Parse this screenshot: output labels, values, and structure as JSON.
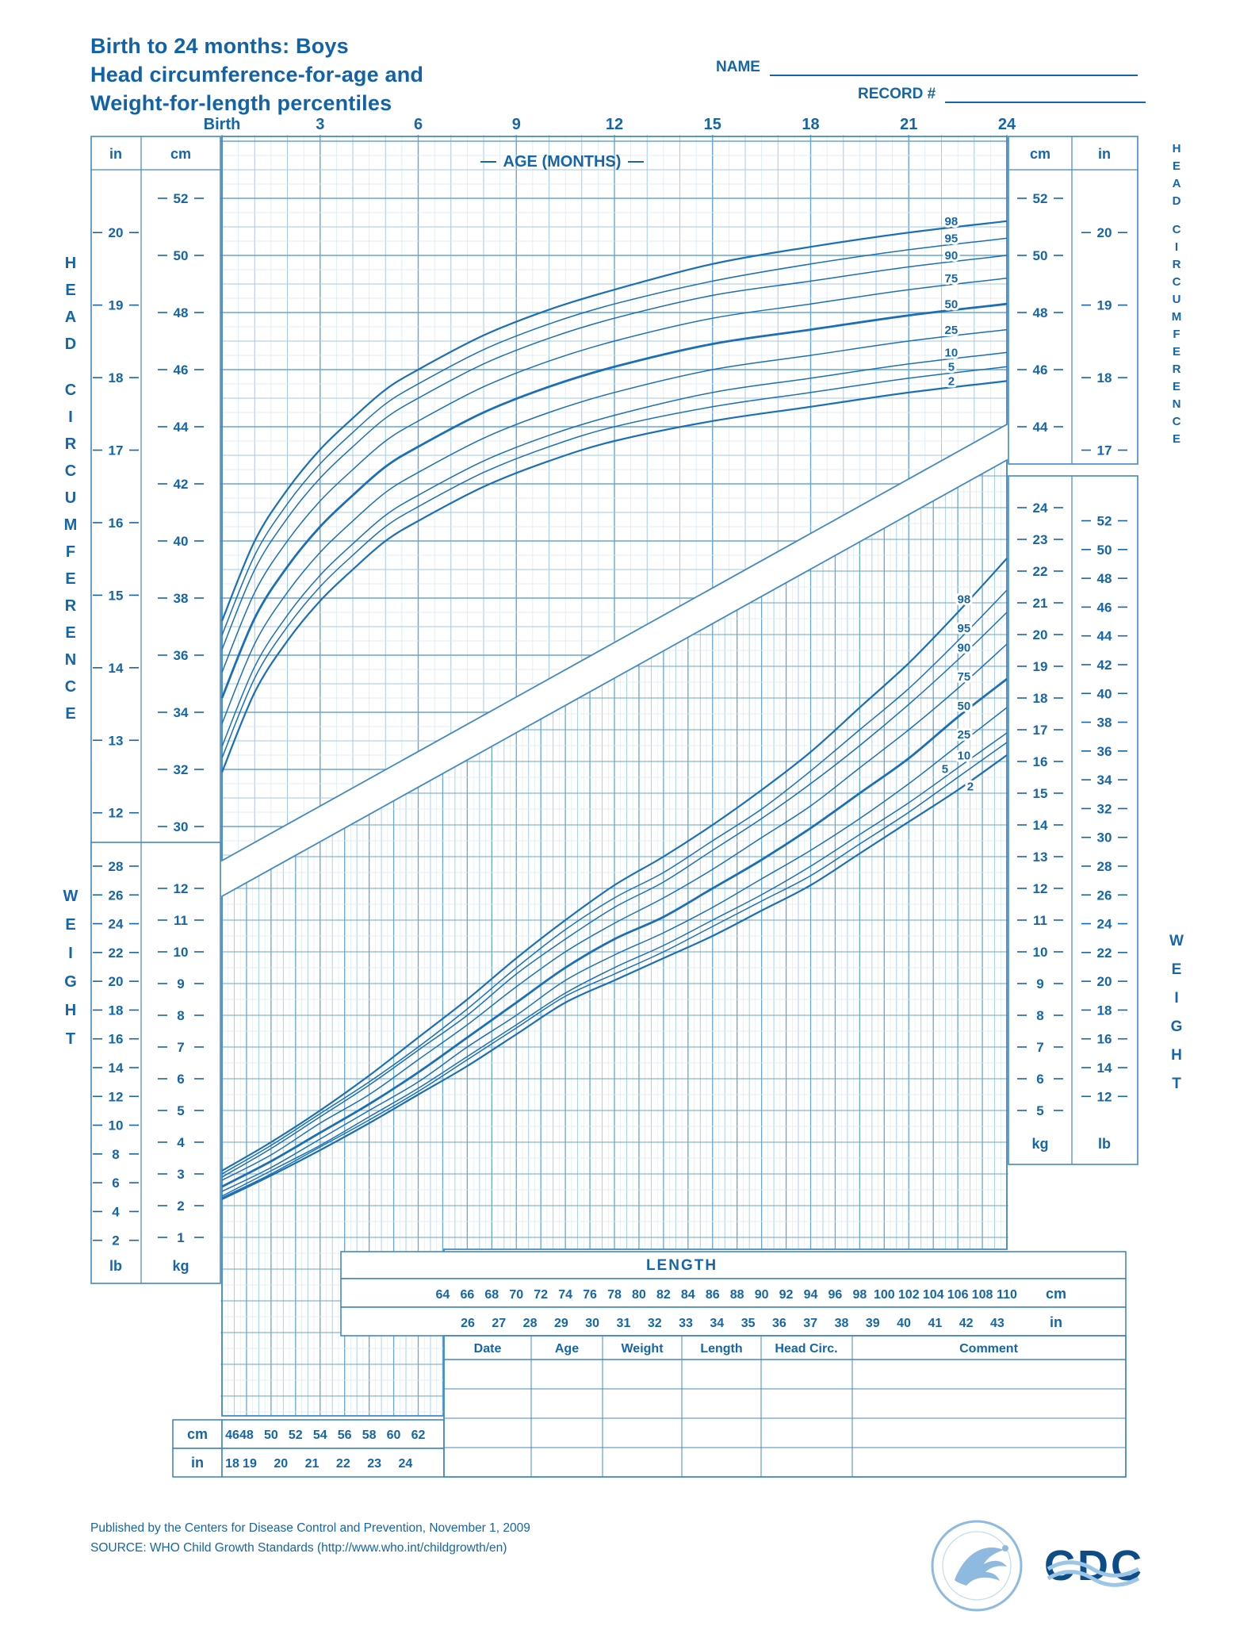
{
  "title_lines": [
    "Birth to 24 months: Boys",
    "Head circumference-for-age and",
    "Weight-for-length percentiles"
  ],
  "fields": {
    "name_label": "NAME",
    "record_label": "RECORD #"
  },
  "age_axis": {
    "title": "AGE (MONTHS)",
    "tick_months": [
      0,
      3,
      6,
      9,
      12,
      15,
      18,
      21,
      24
    ],
    "tick_labels": [
      "Birth",
      "3",
      "6",
      "9",
      "12",
      "15",
      "18",
      "21",
      "24"
    ]
  },
  "side_labels": {
    "left_top": "HEAD CIRCUMFERENCE",
    "right_top": "HEAD CIRCUMFERENCE",
    "left_bottom": "WEIGHT",
    "right_bottom": "WEIGHT"
  },
  "units": {
    "inch": "in",
    "cm": "cm",
    "kg": "kg",
    "lb": "lb"
  },
  "hc_axis": {
    "left_in": [
      20,
      19,
      18,
      17,
      16,
      15,
      14,
      13,
      12
    ],
    "left_cm": [
      52,
      50,
      48,
      46,
      44,
      42,
      40,
      38,
      36,
      34,
      32,
      30
    ],
    "right_cm": [
      52,
      50,
      48,
      46,
      44
    ],
    "right_in": [
      20,
      19,
      18,
      17
    ]
  },
  "wfl_axis": {
    "left_lb": [
      28,
      26,
      24,
      22,
      20,
      18,
      16,
      14,
      12,
      10,
      8,
      6,
      4,
      2
    ],
    "left_kg": [
      12,
      11,
      10,
      9,
      8,
      7,
      6,
      5,
      4,
      3,
      2,
      1
    ],
    "right_kg": [
      24,
      23,
      22,
      21,
      20,
      19,
      18,
      17,
      16,
      15,
      14,
      13,
      12,
      11,
      10,
      9,
      8,
      7,
      6,
      5
    ],
    "right_lb": [
      52,
      50,
      48,
      46,
      44,
      42,
      40,
      38,
      36,
      34,
      32,
      30,
      28,
      26,
      24,
      22,
      20,
      18,
      16,
      14,
      12
    ]
  },
  "length_axis": {
    "title": "LENGTH",
    "cm_ticks": [
      64,
      66,
      68,
      70,
      72,
      74,
      76,
      78,
      80,
      82,
      84,
      86,
      88,
      90,
      92,
      94,
      96,
      98,
      100,
      102,
      104,
      106,
      108,
      110
    ],
    "in_ticks": [
      26,
      27,
      28,
      29,
      30,
      31,
      32,
      33,
      34,
      35,
      36,
      37,
      38,
      39,
      40,
      41,
      42,
      43
    ],
    "small_cm_ticks": [
      46,
      48,
      50,
      52,
      54,
      56,
      58,
      60,
      62
    ],
    "small_in_ticks": [
      18,
      19,
      20,
      21,
      22,
      23,
      24
    ]
  },
  "table": {
    "headers": [
      "Date",
      "Age",
      "Weight",
      "Length",
      "Head Circ.",
      "Comment"
    ],
    "empty_row_count": 4
  },
  "footer_lines": [
    "Published by the Centers for Disease Control and Prevention, November 1, 2009",
    "SOURCE: WHO Child Growth Standards (http://www.who.int/childgrowth/en)"
  ],
  "logos": {
    "cdc_text": "CDC"
  },
  "colors": {
    "ink": "#1565a8",
    "title": "#1262a8",
    "curve": "#1b6fb5",
    "grid_major": "#66a5d4",
    "grid_mid": "#a3cae9",
    "grid_minor": "#d6e8f7",
    "border": "#4189c5",
    "logo_dark": "#0d4c86",
    "logo_light": "#8fbadf"
  },
  "chart_data": [
    {
      "id": "head-circumference-for-age",
      "type": "line",
      "title": "Head circumference-for-age percentiles",
      "xlabel": "AGE (MONTHS)",
      "ylabel": "HEAD CIRCUMFERENCE (cm)",
      "x": [
        0,
        1,
        2,
        3,
        4,
        5,
        6,
        8,
        10,
        12,
        15,
        18,
        21,
        24
      ],
      "x_range": [
        0,
        24
      ],
      "y_range": [
        30,
        52
      ],
      "grid": true,
      "percentile_labels": [
        "98",
        "95",
        "90",
        "75",
        "50",
        "25",
        "10",
        "5",
        "2"
      ],
      "series": [
        {
          "name": "98",
          "values": [
            37.2,
            40.0,
            41.8,
            43.2,
            44.3,
            45.3,
            46.0,
            47.2,
            48.1,
            48.8,
            49.7,
            50.3,
            50.8,
            51.2
          ]
        },
        {
          "name": "95",
          "values": [
            36.7,
            39.5,
            41.3,
            42.7,
            43.8,
            44.8,
            45.5,
            46.7,
            47.6,
            48.3,
            49.1,
            49.7,
            50.2,
            50.6
          ]
        },
        {
          "name": "90",
          "values": [
            36.2,
            39.0,
            40.8,
            42.2,
            43.3,
            44.3,
            45.0,
            46.2,
            47.1,
            47.8,
            48.6,
            49.1,
            49.6,
            50.0
          ]
        },
        {
          "name": "75",
          "values": [
            35.4,
            38.2,
            40.0,
            41.4,
            42.5,
            43.5,
            44.2,
            45.4,
            46.3,
            47.0,
            47.8,
            48.3,
            48.8,
            49.2
          ]
        },
        {
          "name": "50",
          "values": [
            34.5,
            37.3,
            39.1,
            40.5,
            41.6,
            42.6,
            43.3,
            44.5,
            45.4,
            46.1,
            46.9,
            47.4,
            47.9,
            48.3
          ]
        },
        {
          "name": "25",
          "values": [
            33.6,
            36.4,
            38.2,
            39.6,
            40.7,
            41.7,
            42.4,
            43.6,
            44.5,
            45.2,
            46.0,
            46.5,
            47.0,
            47.4
          ]
        },
        {
          "name": "10",
          "values": [
            32.8,
            35.6,
            37.4,
            38.8,
            39.9,
            40.9,
            41.6,
            42.8,
            43.7,
            44.4,
            45.2,
            45.7,
            46.2,
            46.6
          ]
        },
        {
          "name": "5",
          "values": [
            32.4,
            35.2,
            37.0,
            38.4,
            39.5,
            40.5,
            41.2,
            42.4,
            43.3,
            44.0,
            44.7,
            45.2,
            45.7,
            46.1
          ]
        },
        {
          "name": "2",
          "values": [
            31.9,
            34.7,
            36.5,
            37.9,
            39.0,
            40.0,
            40.7,
            41.9,
            42.8,
            43.5,
            44.2,
            44.7,
            45.2,
            45.6
          ]
        }
      ]
    },
    {
      "id": "weight-for-length",
      "type": "line",
      "title": "Weight-for-length percentiles",
      "xlabel": "LENGTH (cm)",
      "ylabel": "WEIGHT (kg)",
      "x": [
        46,
        50,
        54,
        58,
        62,
        66,
        70,
        74,
        78,
        82,
        86,
        90,
        94,
        98,
        102,
        106,
        110
      ],
      "x_range": [
        45,
        110
      ],
      "y_range": [
        1,
        24
      ],
      "grid": true,
      "percentile_labels": [
        "98",
        "95",
        "90",
        "75",
        "50",
        "25",
        "10",
        "5",
        "2"
      ],
      "series": [
        {
          "name": "98",
          "values": [
            3.1,
            4.0,
            5.0,
            6.1,
            7.3,
            8.5,
            9.8,
            11.0,
            12.1,
            13.0,
            14.0,
            15.1,
            16.3,
            17.7,
            19.1,
            20.7,
            22.4
          ]
        },
        {
          "name": "95",
          "values": [
            3.0,
            3.9,
            4.9,
            5.9,
            7.0,
            8.2,
            9.5,
            10.7,
            11.7,
            12.5,
            13.5,
            14.5,
            15.7,
            17.0,
            18.3,
            19.8,
            21.4
          ]
        },
        {
          "name": "90",
          "values": [
            2.9,
            3.8,
            4.8,
            5.8,
            6.9,
            8.0,
            9.3,
            10.4,
            11.4,
            12.2,
            13.2,
            14.2,
            15.3,
            16.5,
            17.8,
            19.2,
            20.7
          ]
        },
        {
          "name": "75",
          "values": [
            2.8,
            3.6,
            4.6,
            5.5,
            6.6,
            7.7,
            8.9,
            10.0,
            10.9,
            11.7,
            12.6,
            13.6,
            14.6,
            15.8,
            17.0,
            18.3,
            19.7
          ]
        },
        {
          "name": "50",
          "values": [
            2.6,
            3.4,
            4.3,
            5.2,
            6.2,
            7.3,
            8.4,
            9.5,
            10.4,
            11.1,
            12.0,
            12.9,
            13.9,
            15.0,
            16.1,
            17.4,
            18.6
          ]
        },
        {
          "name": "25",
          "values": [
            2.45,
            3.2,
            4.1,
            5.0,
            5.9,
            7.0,
            8.0,
            9.1,
            9.9,
            10.6,
            11.4,
            12.3,
            13.2,
            14.2,
            15.3,
            16.5,
            17.7
          ]
        },
        {
          "name": "10",
          "values": [
            2.3,
            3.1,
            3.9,
            4.8,
            5.7,
            6.7,
            7.7,
            8.7,
            9.5,
            10.2,
            11.0,
            11.8,
            12.7,
            13.7,
            14.7,
            15.8,
            16.9
          ]
        },
        {
          "name": "5",
          "values": [
            2.25,
            3.0,
            3.85,
            4.7,
            5.6,
            6.6,
            7.6,
            8.6,
            9.3,
            10.0,
            10.8,
            11.6,
            12.4,
            13.4,
            14.4,
            15.5,
            16.6
          ]
        },
        {
          "name": "2",
          "values": [
            2.2,
            2.95,
            3.75,
            4.6,
            5.5,
            6.4,
            7.4,
            8.4,
            9.1,
            9.8,
            10.5,
            11.3,
            12.1,
            13.1,
            14.1,
            15.1,
            16.2
          ]
        }
      ]
    }
  ]
}
